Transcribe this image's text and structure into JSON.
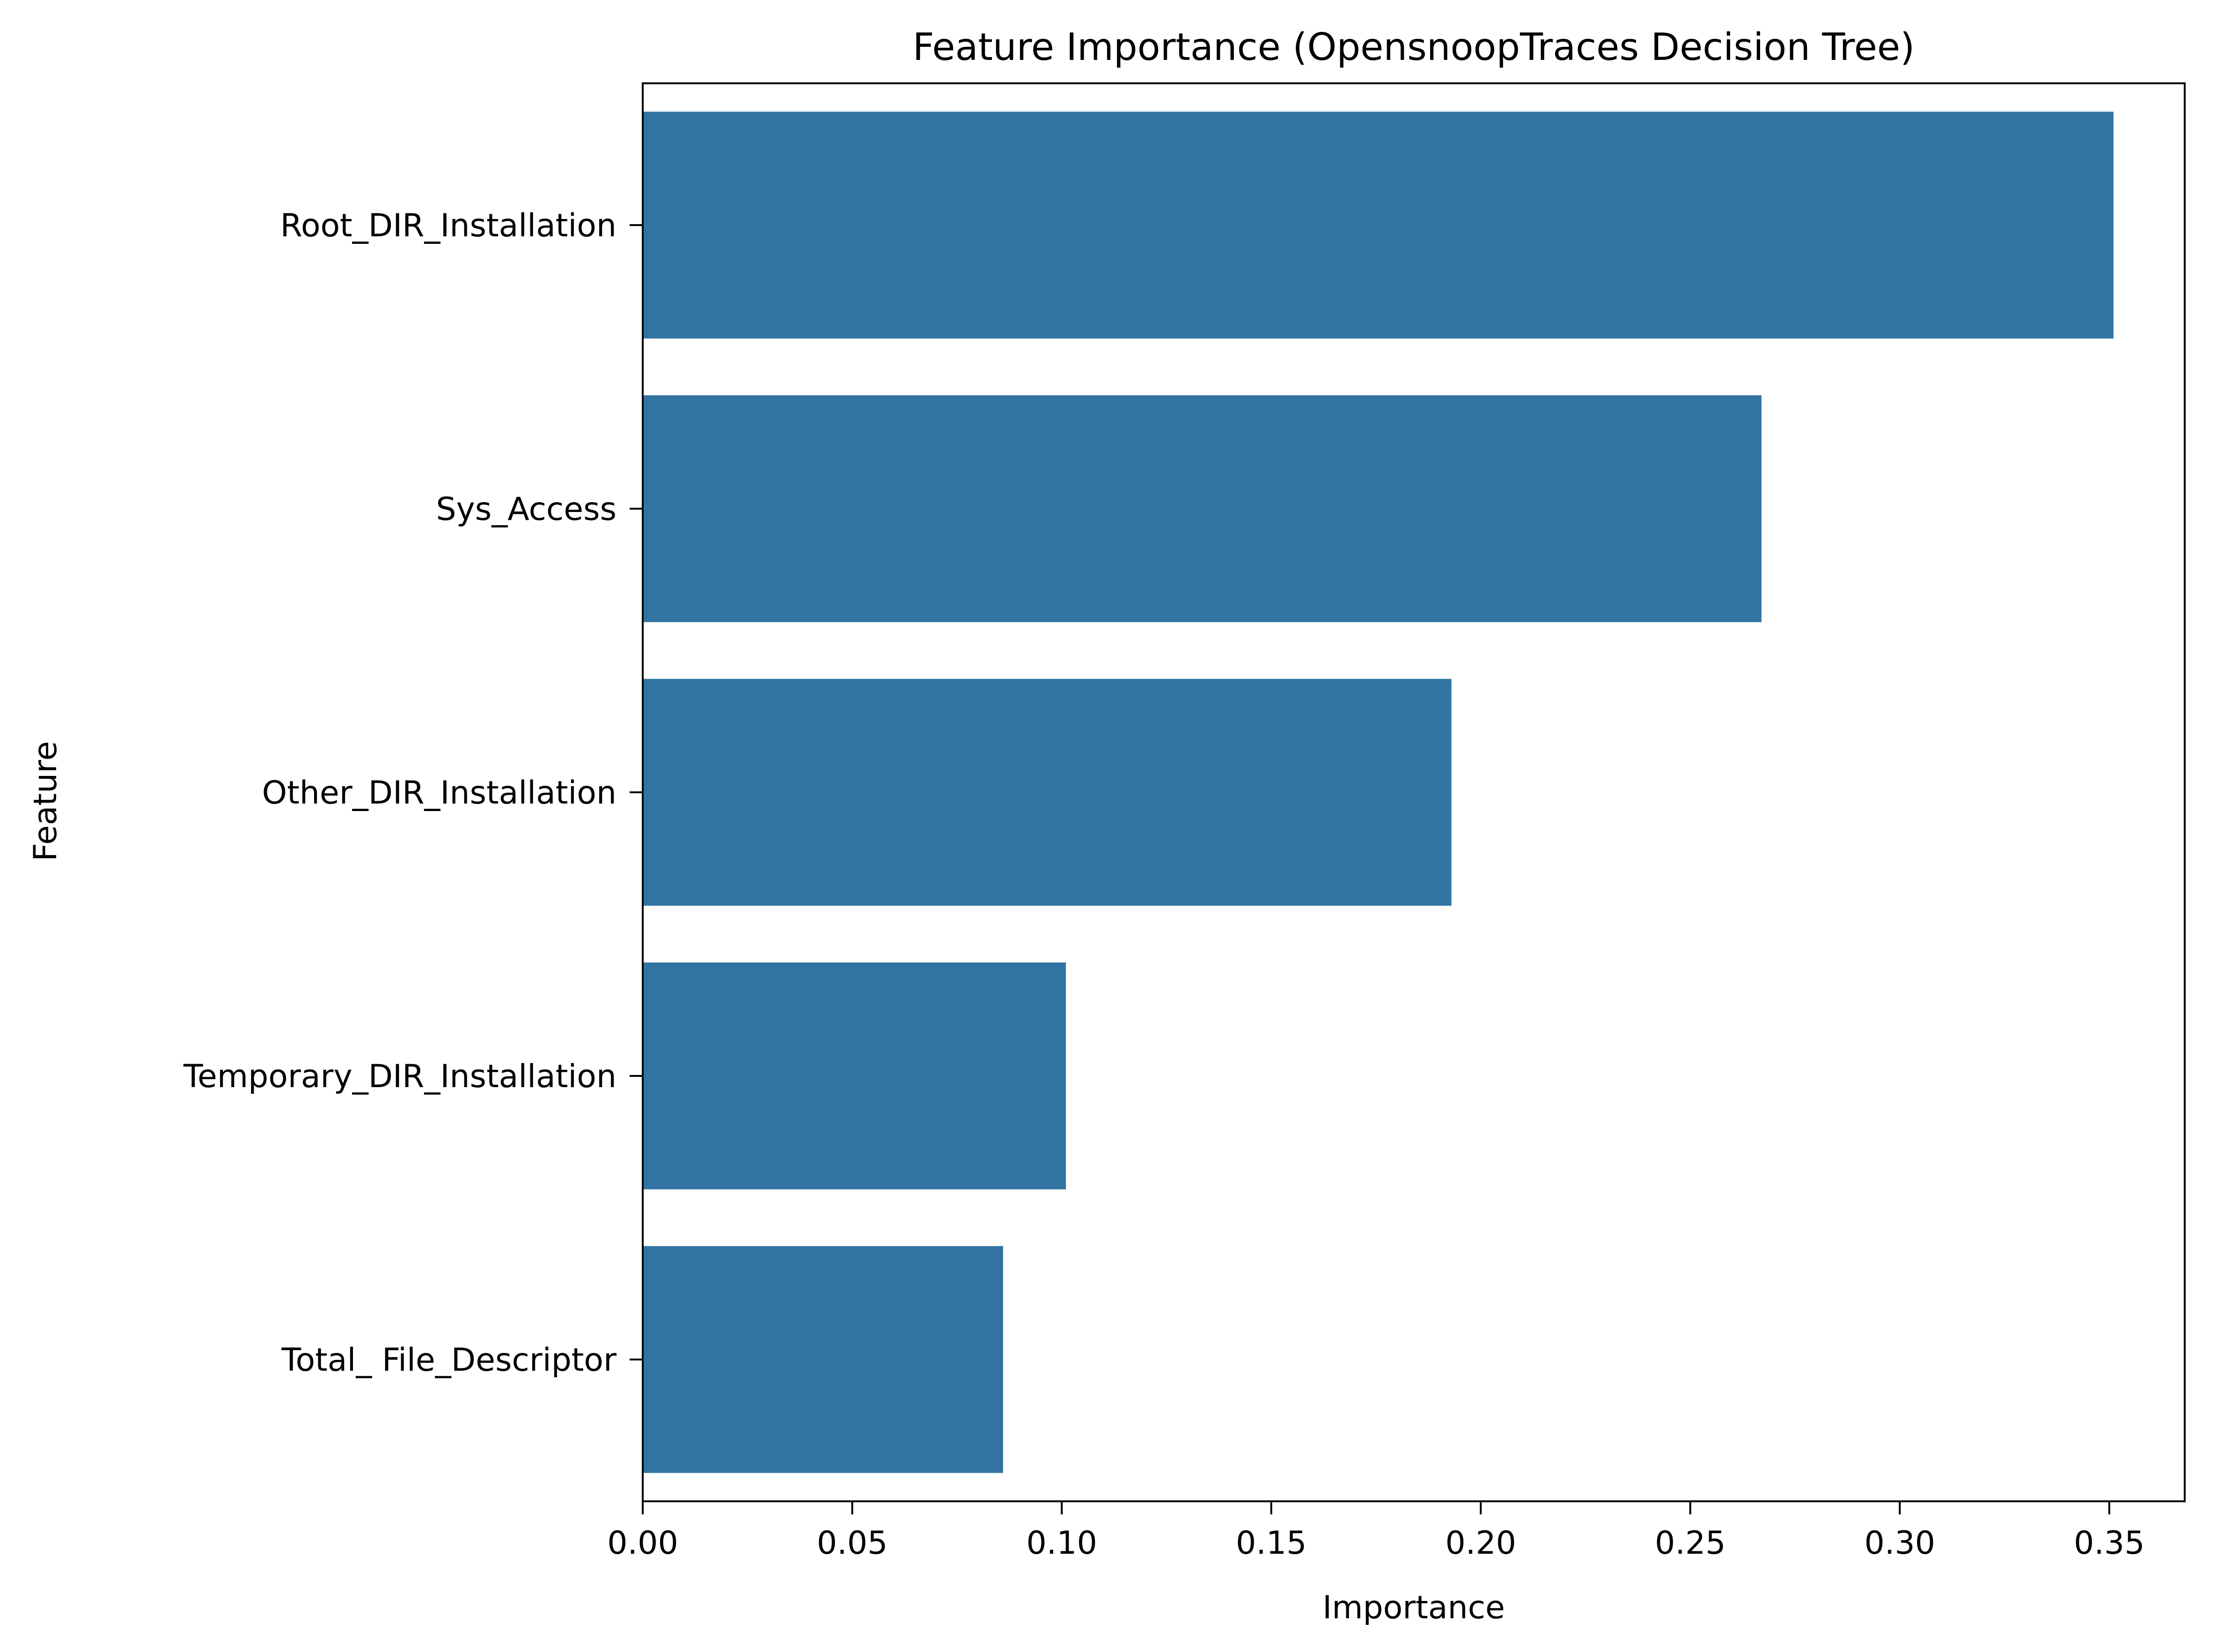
{
  "chart_data": {
    "type": "bar",
    "orientation": "horizontal",
    "title": "Feature Importance (OpensnoopTraces Decision Tree)",
    "xlabel": "Importance",
    "ylabel": "Feature",
    "categories": [
      "Root_DIR_Installation",
      "Sys_Access",
      "Other_DIR_Installation",
      "Temporary_DIR_Installation",
      "Total_ File_Descriptor"
    ],
    "values": [
      0.351,
      0.267,
      0.193,
      0.101,
      0.086
    ],
    "xlim": [
      0,
      0.368
    ],
    "xticks": [
      0.0,
      0.05,
      0.1,
      0.15,
      0.2,
      0.25,
      0.3,
      0.35
    ],
    "xtick_labels": [
      "0.00",
      "0.05",
      "0.10",
      "0.15",
      "0.20",
      "0.25",
      "0.30",
      "0.35"
    ],
    "grid": false,
    "bar_color": "#3274a1"
  }
}
